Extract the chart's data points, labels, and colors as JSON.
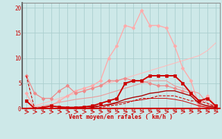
{
  "background_color": "#cde8e8",
  "grid_color": "#aacece",
  "xlabel": "Vent moyen/en rafales ( km/h )",
  "xlabel_color": "#cc0000",
  "tick_color": "#cc0000",
  "ylabel_ticks": [
    0,
    5,
    10,
    15,
    20
  ],
  "xlim": [
    -0.5,
    23.5
  ],
  "ylim": [
    0,
    21
  ],
  "x_values": [
    0,
    1,
    2,
    3,
    4,
    5,
    6,
    7,
    8,
    9,
    10,
    11,
    12,
    13,
    14,
    15,
    16,
    17,
    18,
    19,
    20,
    21,
    22,
    23
  ],
  "lines": [
    {
      "y": [
        0.0,
        0.5,
        1.0,
        1.5,
        2.0,
        2.5,
        3.0,
        3.5,
        4.0,
        4.5,
        5.0,
        5.5,
        6.0,
        6.5,
        7.0,
        7.5,
        8.0,
        8.5,
        9.0,
        9.5,
        10.0,
        10.5,
        11.5,
        13.0
      ],
      "color": "#ffbbbb",
      "linewidth": 0.8,
      "linestyle": "-",
      "marker": null
    },
    {
      "y": [
        3.0,
        0.0,
        0.0,
        0.5,
        1.5,
        2.5,
        3.5,
        4.0,
        4.5,
        5.5,
        10.0,
        12.5,
        16.5,
        16.0,
        19.5,
        16.5,
        16.5,
        16.0,
        12.5,
        8.0,
        5.5,
        0.5,
        2.5,
        0.5
      ],
      "color": "#ffaaaa",
      "linewidth": 1.0,
      "linestyle": "-",
      "marker": "D",
      "markersize": 2.5
    },
    {
      "y": [
        6.5,
        3.0,
        2.0,
        2.0,
        3.5,
        4.5,
        3.0,
        3.5,
        4.0,
        4.5,
        5.5,
        5.5,
        6.0,
        5.5,
        5.5,
        5.0,
        4.5,
        4.5,
        4.0,
        3.5,
        3.0,
        0.5,
        0.5,
        0.5
      ],
      "color": "#ee8888",
      "linewidth": 0.9,
      "linestyle": "-",
      "marker": "D",
      "markersize": 2.5
    },
    {
      "y": [
        0.0,
        0.2,
        0.5,
        0.8,
        1.2,
        1.5,
        1.8,
        2.0,
        2.2,
        2.5,
        3.0,
        3.5,
        4.0,
        4.5,
        5.0,
        5.5,
        5.5,
        5.5,
        4.5,
        4.0,
        3.5,
        3.0,
        1.0,
        0.5
      ],
      "color": "#ee9999",
      "linewidth": 0.8,
      "linestyle": "-",
      "marker": null
    },
    {
      "y": [
        1.5,
        0.0,
        0.2,
        0.5,
        0.3,
        0.2,
        0.2,
        0.3,
        0.5,
        1.0,
        1.5,
        2.0,
        5.0,
        5.5,
        5.5,
        6.5,
        6.5,
        6.5,
        6.5,
        5.0,
        3.0,
        1.5,
        2.0,
        0.5
      ],
      "color": "#cc0000",
      "linewidth": 1.4,
      "linestyle": "-",
      "marker": "s",
      "markersize": 2.5
    },
    {
      "y": [
        0.0,
        0.0,
        0.0,
        0.0,
        0.0,
        0.0,
        0.0,
        0.0,
        0.2,
        0.5,
        0.8,
        1.2,
        1.8,
        2.2,
        2.5,
        3.0,
        3.2,
        3.5,
        3.5,
        3.0,
        2.5,
        1.0,
        0.5,
        0.2
      ],
      "color": "#aa0000",
      "linewidth": 1.0,
      "linestyle": "-",
      "marker": null
    },
    {
      "y": [
        0.0,
        0.0,
        0.0,
        0.0,
        0.0,
        0.1,
        0.2,
        0.3,
        0.4,
        0.5,
        0.7,
        1.0,
        1.3,
        1.5,
        1.7,
        2.0,
        2.0,
        2.0,
        1.8,
        1.5,
        1.0,
        0.5,
        0.2,
        0.1
      ],
      "color": "#cc0000",
      "linewidth": 0.7,
      "linestyle": "-",
      "marker": null
    },
    {
      "y": [
        6.5,
        0.0,
        0.0,
        0.0,
        0.0,
        0.0,
        0.0,
        0.0,
        0.0,
        0.2,
        0.5,
        0.7,
        1.0,
        1.5,
        2.0,
        2.0,
        2.5,
        2.5,
        2.5,
        2.0,
        1.5,
        1.5,
        1.0,
        0.3
      ],
      "color": "#cc0000",
      "linewidth": 0.8,
      "linestyle": "--",
      "marker": null
    }
  ],
  "arrow_color": "#cc0000",
  "bottom_line_color": "#cc0000"
}
